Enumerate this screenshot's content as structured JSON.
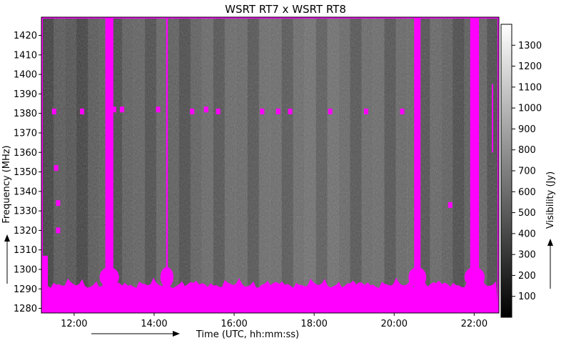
{
  "chart_data": {
    "type": "heatmap",
    "title": "WSRT RT7 x WSRT RT8",
    "xlabel": "Time (UTC, hh:mm:ss)",
    "ylabel": "Frequency (MHz)",
    "colorbar_label": "Visibility (Jy)",
    "x_range_hours": [
      11.2,
      22.6
    ],
    "x_ticks": [
      {
        "value": 12,
        "label": "12:00"
      },
      {
        "value": 14,
        "label": "14:00"
      },
      {
        "value": 16,
        "label": "16:00"
      },
      {
        "value": 18,
        "label": "18:00"
      },
      {
        "value": 20,
        "label": "20:00"
      },
      {
        "value": 22,
        "label": "22:00"
      }
    ],
    "ylim": [
      1278,
      1429
    ],
    "y_ticks": [
      1280,
      1290,
      1300,
      1310,
      1320,
      1330,
      1340,
      1350,
      1360,
      1370,
      1380,
      1390,
      1400,
      1410,
      1420
    ],
    "colorbar_range": [
      0,
      1400
    ],
    "colorbar_ticks": [
      100,
      200,
      300,
      400,
      500,
      600,
      700,
      800,
      900,
      1000,
      1100,
      1200,
      1300
    ],
    "colormap": "gray",
    "flag_color": "#ff00ff",
    "flagged_time_bands_hours": [
      {
        "start": 12.78,
        "end": 12.98
      },
      {
        "start": 14.3,
        "end": 14.34
      },
      {
        "start": 20.5,
        "end": 20.66
      },
      {
        "start": 21.9,
        "end": 22.12
      }
    ],
    "flagged_low_freq_below_mhz": 1292,
    "rfi_spots": [
      {
        "x": 11.5,
        "y": 1381
      },
      {
        "x": 12.2,
        "y": 1381
      },
      {
        "x": 13.0,
        "y": 1382
      },
      {
        "x": 13.2,
        "y": 1382
      },
      {
        "x": 14.1,
        "y": 1382
      },
      {
        "x": 14.95,
        "y": 1381
      },
      {
        "x": 15.3,
        "y": 1382
      },
      {
        "x": 15.6,
        "y": 1381
      },
      {
        "x": 16.7,
        "y": 1381
      },
      {
        "x": 17.1,
        "y": 1381
      },
      {
        "x": 17.4,
        "y": 1381
      },
      {
        "x": 18.4,
        "y": 1381
      },
      {
        "x": 19.3,
        "y": 1381
      },
      {
        "x": 20.2,
        "y": 1381
      },
      {
        "x": 21.4,
        "y": 1333
      },
      {
        "x": 11.6,
        "y": 1334
      },
      {
        "x": 11.6,
        "y": 1320
      },
      {
        "x": 11.55,
        "y": 1352
      }
    ]
  }
}
